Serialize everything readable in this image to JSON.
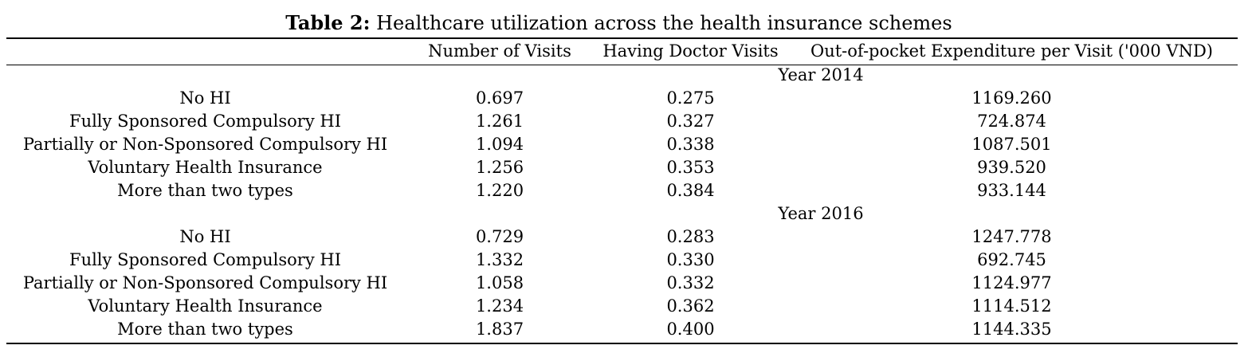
{
  "caption": {
    "label": "Table 2:",
    "text": "Healthcare utilization across the health insurance schemes"
  },
  "table": {
    "columns": [
      "",
      "Number of Visits",
      "Having Doctor Visits",
      "Out-of-pocket Expenditure per Visit ('000 VND)"
    ],
    "groups": [
      {
        "label": "Year 2014",
        "rows": [
          {
            "name": "No HI",
            "visits": "0.697",
            "doctor": "0.275",
            "oop": "1169.260"
          },
          {
            "name": "Fully Sponsored Compulsory HI",
            "visits": "1.261",
            "doctor": "0.327",
            "oop": "724.874"
          },
          {
            "name": "Partially or Non-Sponsored Compulsory HI",
            "visits": "1.094",
            "doctor": "0.338",
            "oop": "1087.501"
          },
          {
            "name": "Voluntary Health Insurance",
            "visits": "1.256",
            "doctor": "0.353",
            "oop": "939.520"
          },
          {
            "name": "More than two types",
            "visits": "1.220",
            "doctor": "0.384",
            "oop": "933.144"
          }
        ]
      },
      {
        "label": "Year 2016",
        "rows": [
          {
            "name": "No HI",
            "visits": "0.729",
            "doctor": "0.283",
            "oop": "1247.778"
          },
          {
            "name": "Fully Sponsored Compulsory HI",
            "visits": "1.332",
            "doctor": "0.330",
            "oop": "692.745"
          },
          {
            "name": "Partially or Non-Sponsored Compulsory HI",
            "visits": "1.058",
            "doctor": "0.332",
            "oop": "1124.977"
          },
          {
            "name": "Voluntary Health Insurance",
            "visits": "1.234",
            "doctor": "0.362",
            "oop": "1114.512"
          },
          {
            "name": "More than two types",
            "visits": "1.837",
            "doctor": "0.400",
            "oop": "1144.335"
          }
        ]
      }
    ]
  }
}
